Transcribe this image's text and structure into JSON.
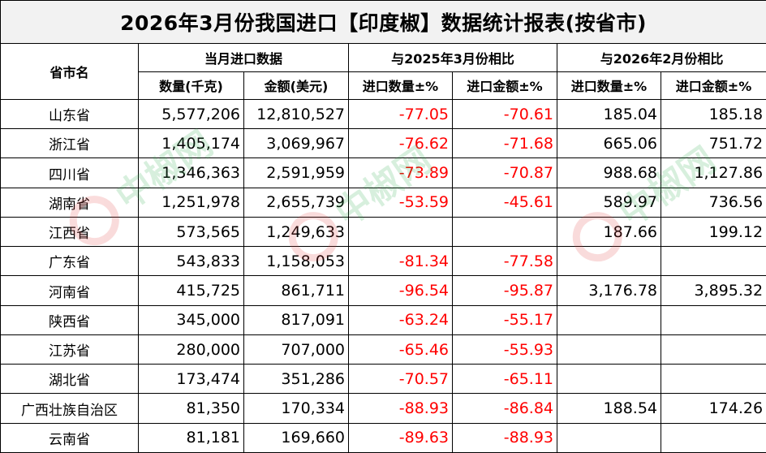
{
  "title": "2026年3月份我国进口【印度椒】数据统计报表(按省市)",
  "headers": {
    "region": "省市名",
    "group_current": "当月进口数据",
    "group_yoy": "与2025年3月份相比",
    "group_mom": "与2026年2月份相比",
    "qty": "数量(千克)",
    "amount": "金额(美元)",
    "yoy_qty": "进口数量±%",
    "yoy_amt": "进口金额±%",
    "mom_qty": "进口数量±%",
    "mom_amt": "进口金额±%"
  },
  "colors": {
    "negative": "#ff0000",
    "header_bg": "#f2f2f2",
    "watermark": "#2aa84a"
  },
  "watermark_text": "中椒网",
  "rows": [
    {
      "name": "山东省",
      "qty": "5,577,206",
      "amount": "12,810,527",
      "yoy_qty": "-77.05",
      "yoy_amt": "-70.61",
      "mom_qty": "185.04",
      "mom_amt": "185.18"
    },
    {
      "name": "浙江省",
      "qty": "1,405,174",
      "amount": "3,069,967",
      "yoy_qty": "-76.62",
      "yoy_amt": "-71.68",
      "mom_qty": "665.06",
      "mom_amt": "751.72"
    },
    {
      "name": "四川省",
      "qty": "1,346,363",
      "amount": "2,591,959",
      "yoy_qty": "-73.89",
      "yoy_amt": "-70.87",
      "mom_qty": "988.68",
      "mom_amt": "1,127.86"
    },
    {
      "name": "湖南省",
      "qty": "1,251,978",
      "amount": "2,655,739",
      "yoy_qty": "-53.59",
      "yoy_amt": "-45.61",
      "mom_qty": "589.97",
      "mom_amt": "736.56"
    },
    {
      "name": "江西省",
      "qty": "573,565",
      "amount": "1,249,633",
      "yoy_qty": "",
      "yoy_amt": "",
      "mom_qty": "187.66",
      "mom_amt": "199.12"
    },
    {
      "name": "广东省",
      "qty": "543,833",
      "amount": "1,158,053",
      "yoy_qty": "-81.34",
      "yoy_amt": "-77.58",
      "mom_qty": "",
      "mom_amt": ""
    },
    {
      "name": "河南省",
      "qty": "415,725",
      "amount": "861,711",
      "yoy_qty": "-96.54",
      "yoy_amt": "-95.87",
      "mom_qty": "3,176.78",
      "mom_amt": "3,895.32"
    },
    {
      "name": "陕西省",
      "qty": "345,000",
      "amount": "817,091",
      "yoy_qty": "-63.24",
      "yoy_amt": "-55.17",
      "mom_qty": "",
      "mom_amt": ""
    },
    {
      "name": "江苏省",
      "qty": "280,000",
      "amount": "707,000",
      "yoy_qty": "-65.46",
      "yoy_amt": "-55.93",
      "mom_qty": "",
      "mom_amt": ""
    },
    {
      "name": "湖北省",
      "qty": "173,474",
      "amount": "351,286",
      "yoy_qty": "-70.57",
      "yoy_amt": "-65.11",
      "mom_qty": "",
      "mom_amt": ""
    },
    {
      "name": "广西壮族自治区",
      "qty": "81,350",
      "amount": "170,334",
      "yoy_qty": "-88.93",
      "yoy_amt": "-86.84",
      "mom_qty": "188.54",
      "mom_amt": "174.26"
    },
    {
      "name": "云南省",
      "qty": "81,181",
      "amount": "169,660",
      "yoy_qty": "-89.63",
      "yoy_amt": "-88.93",
      "mom_qty": "",
      "mom_amt": ""
    }
  ]
}
